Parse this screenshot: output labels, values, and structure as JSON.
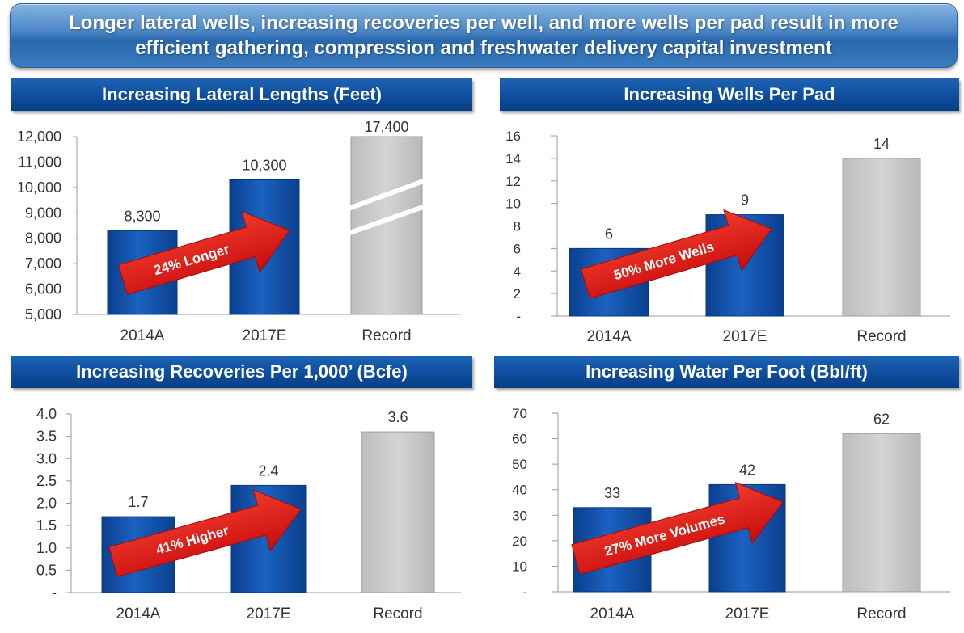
{
  "banner": {
    "line1": "Longer lateral wells, increasing recoveries per well, and more wells per pad result in more",
    "line2": "efficient gathering, compression  and freshwater delivery capital investment"
  },
  "colors": {
    "bar_blue": "#0b4fa8",
    "bar_gray": "#c9c9c9",
    "arrow_red": "#e01818",
    "title_blue": "#0e4e9e"
  },
  "chart_data": [
    {
      "type": "bar",
      "title": "Increasing Lateral Lengths (Feet)",
      "categories": [
        "2014A",
        "2017E",
        "Record"
      ],
      "values": [
        8300,
        10300,
        17400
      ],
      "value_labels": [
        "8,300",
        "10,300",
        "17,400"
      ],
      "ylim": [
        5000,
        12000
      ],
      "y_ticks": [
        5000,
        6000,
        7000,
        8000,
        9000,
        10000,
        11000,
        12000
      ],
      "y_tick_labels": [
        "5,000",
        "6,000",
        "7,000",
        "8,000",
        "9,000",
        "10,000",
        "11,000",
        "12,000"
      ],
      "axis_break": true,
      "annotation": "24% Longer"
    },
    {
      "type": "bar",
      "title": "Increasing Wells Per Pad",
      "categories": [
        "2014A",
        "2017E",
        "Record"
      ],
      "values": [
        6,
        9,
        14
      ],
      "value_labels": [
        "6",
        "9",
        "14"
      ],
      "ylim": [
        0,
        16
      ],
      "y_ticks": [
        0,
        2,
        4,
        6,
        8,
        10,
        12,
        14,
        16
      ],
      "y_tick_labels": [
        "-",
        "2",
        "4",
        "6",
        "8",
        "10",
        "12",
        "14",
        "16"
      ],
      "axis_break": false,
      "annotation": "50% More Wells"
    },
    {
      "type": "bar",
      "title": "Increasing Recoveries Per 1,000’ (Bcfe)",
      "categories": [
        "2014A",
        "2017E",
        "Record"
      ],
      "values": [
        1.7,
        2.4,
        3.6
      ],
      "value_labels": [
        "1.7",
        "2.4",
        "3.6"
      ],
      "ylim": [
        0,
        4.0
      ],
      "y_ticks": [
        0,
        0.5,
        1.0,
        1.5,
        2.0,
        2.5,
        3.0,
        3.5,
        4.0
      ],
      "y_tick_labels": [
        "-",
        "0.5",
        "1.0",
        "1.5",
        "2.0",
        "2.5",
        "3.0",
        "3.5",
        "4.0"
      ],
      "axis_break": false,
      "annotation": "41% Higher"
    },
    {
      "type": "bar",
      "title": "Increasing Water Per Foot (Bbl/ft)",
      "categories": [
        "2014A",
        "2017E",
        "Record"
      ],
      "values": [
        33,
        42,
        62
      ],
      "value_labels": [
        "33",
        "42",
        "62"
      ],
      "ylim": [
        0,
        70
      ],
      "y_ticks": [
        0,
        10,
        20,
        30,
        40,
        50,
        60,
        70
      ],
      "y_tick_labels": [
        "-",
        "10",
        "20",
        "30",
        "40",
        "50",
        "60",
        "70"
      ],
      "axis_break": false,
      "annotation": "27% More Volumes"
    }
  ]
}
